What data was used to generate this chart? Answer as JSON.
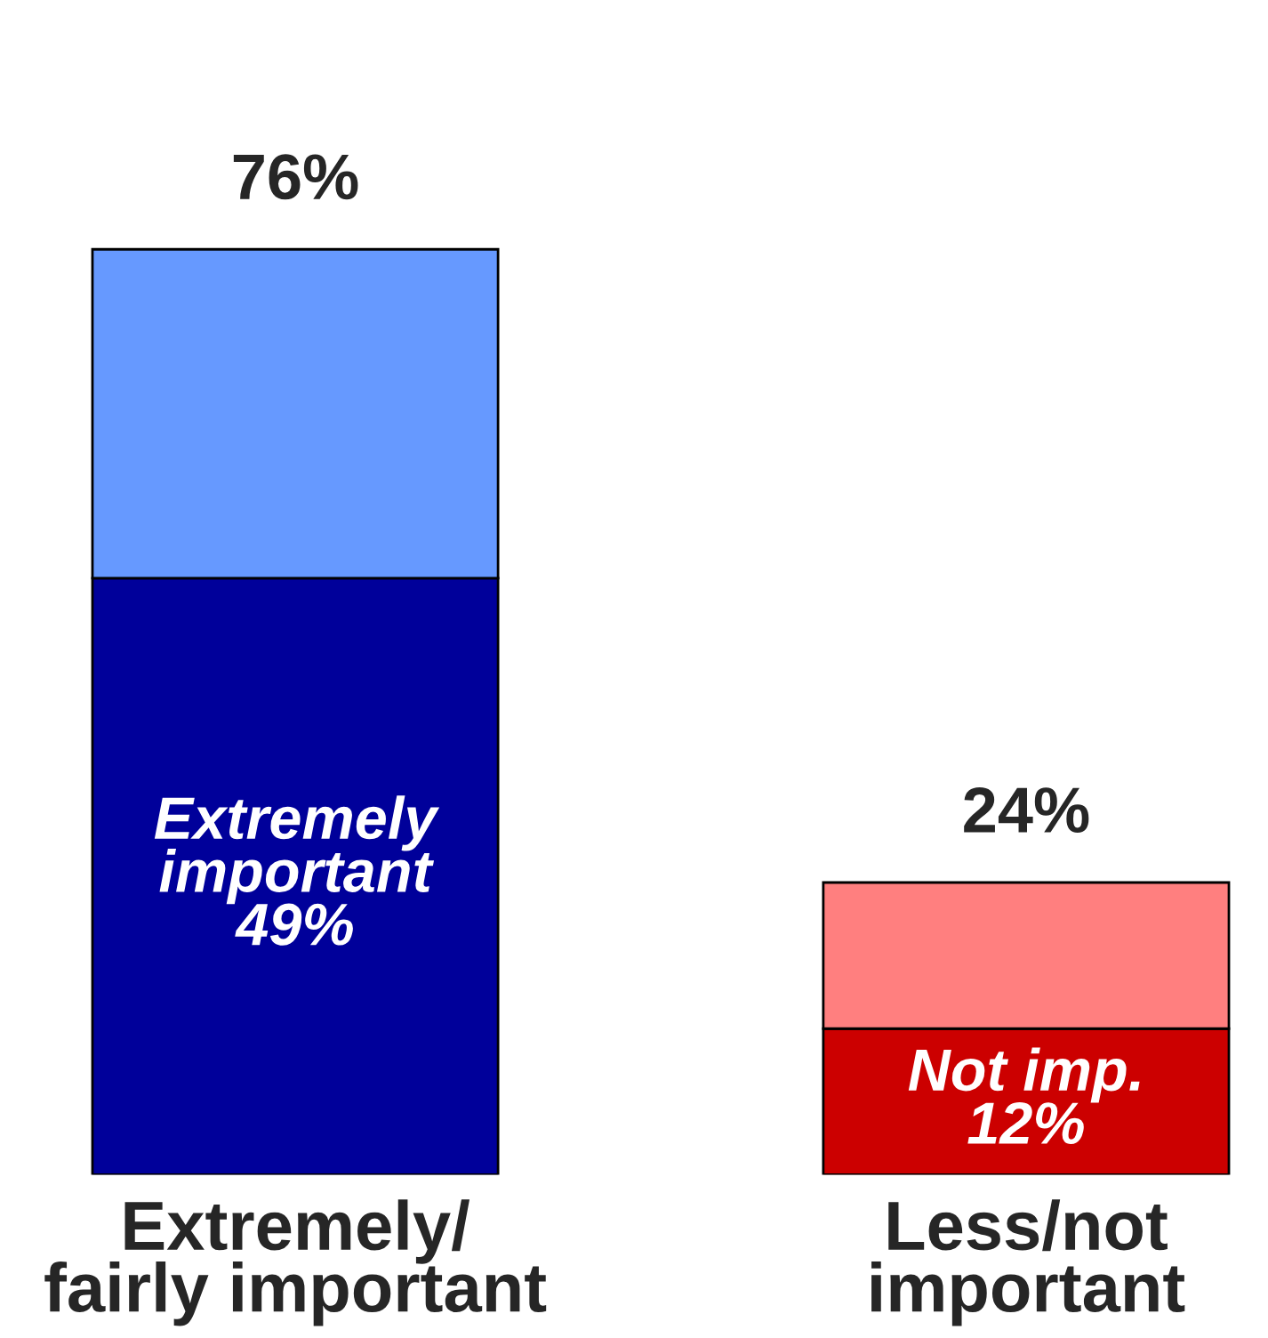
{
  "chart_data": {
    "type": "bar",
    "stacked": true,
    "categories": [
      "Extremely/\nfairly important",
      "Less/not\nimportant"
    ],
    "series": [
      {
        "colors": [
          "#00009a",
          "#cc0000"
        ],
        "values": [
          49,
          12
        ],
        "value_labels": [
          "Extremely\nimportant\n49%",
          "Not imp.\n12%"
        ]
      },
      {
        "colors": [
          "#6699ff",
          "#ff7f7f"
        ],
        "values": [
          27,
          12
        ]
      }
    ],
    "totals": [
      "76%",
      "24%"
    ]
  }
}
